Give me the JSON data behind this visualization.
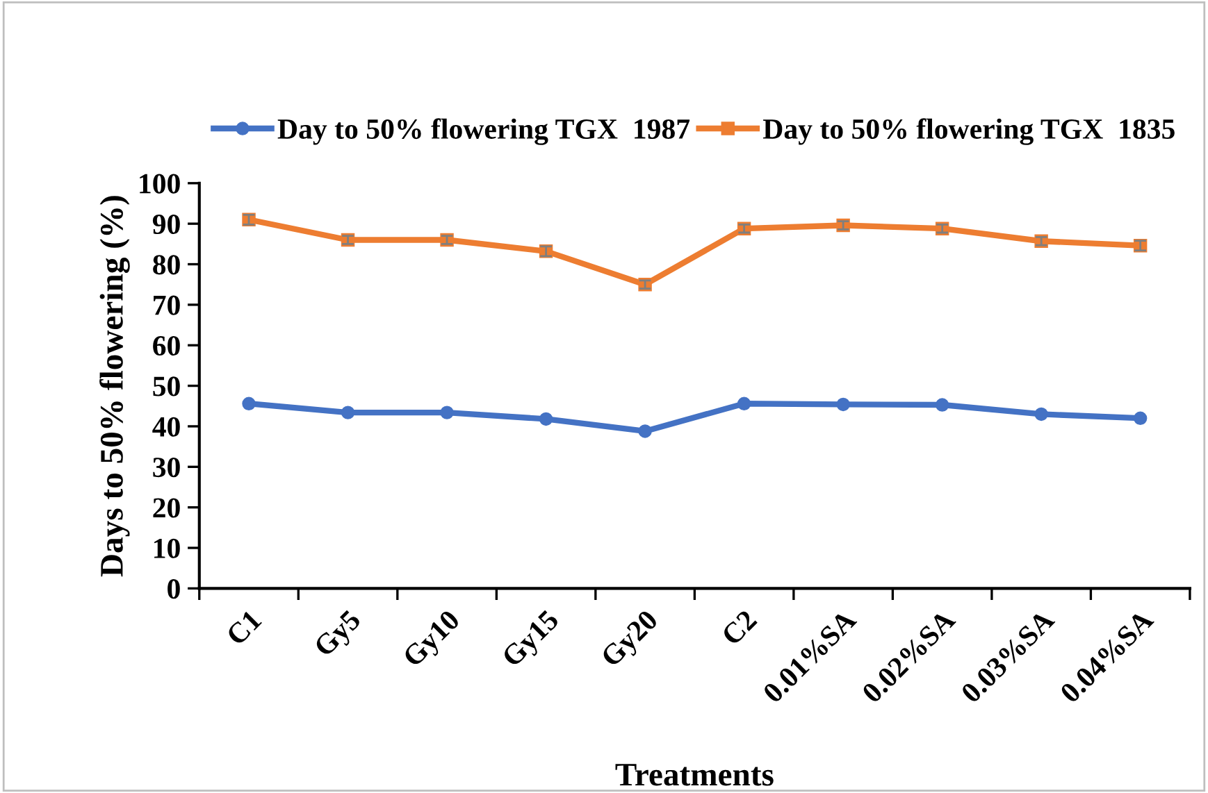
{
  "chart_data": {
    "type": "line",
    "xlabel": "Treatments",
    "ylabel": "Days to 50% flowering (%)",
    "categories": [
      "C1",
      "Gy5",
      "Gy10",
      "Gy15",
      "Gy20",
      "C2",
      "0.01%SA",
      "0.02%SA",
      "0.03%SA",
      "0.04%SA"
    ],
    "series": [
      {
        "name": "Day to 50% flowering TGX  1987",
        "color": "#4472c4",
        "marker": "circle",
        "values": [
          45.6,
          43.4,
          43.4,
          41.8,
          38.8,
          45.6,
          45.4,
          45.3,
          43.0,
          42.0
        ]
      },
      {
        "name": "Day to 50% flowering TGX  1835",
        "color": "#ed7d31",
        "marker": "square",
        "values": [
          91.0,
          86.0,
          86.0,
          83.2,
          75.0,
          88.8,
          89.6,
          88.8,
          85.7,
          84.6
        ],
        "errors": [
          1.2,
          1.0,
          1.0,
          1.2,
          1.0,
          1.0,
          1.0,
          1.0,
          1.0,
          1.2
        ]
      }
    ],
    "ylim": [
      0,
      100
    ],
    "yticks": [
      0,
      10,
      20,
      30,
      40,
      50,
      60,
      70,
      80,
      90,
      100
    ],
    "grid": false,
    "legend": "top"
  }
}
